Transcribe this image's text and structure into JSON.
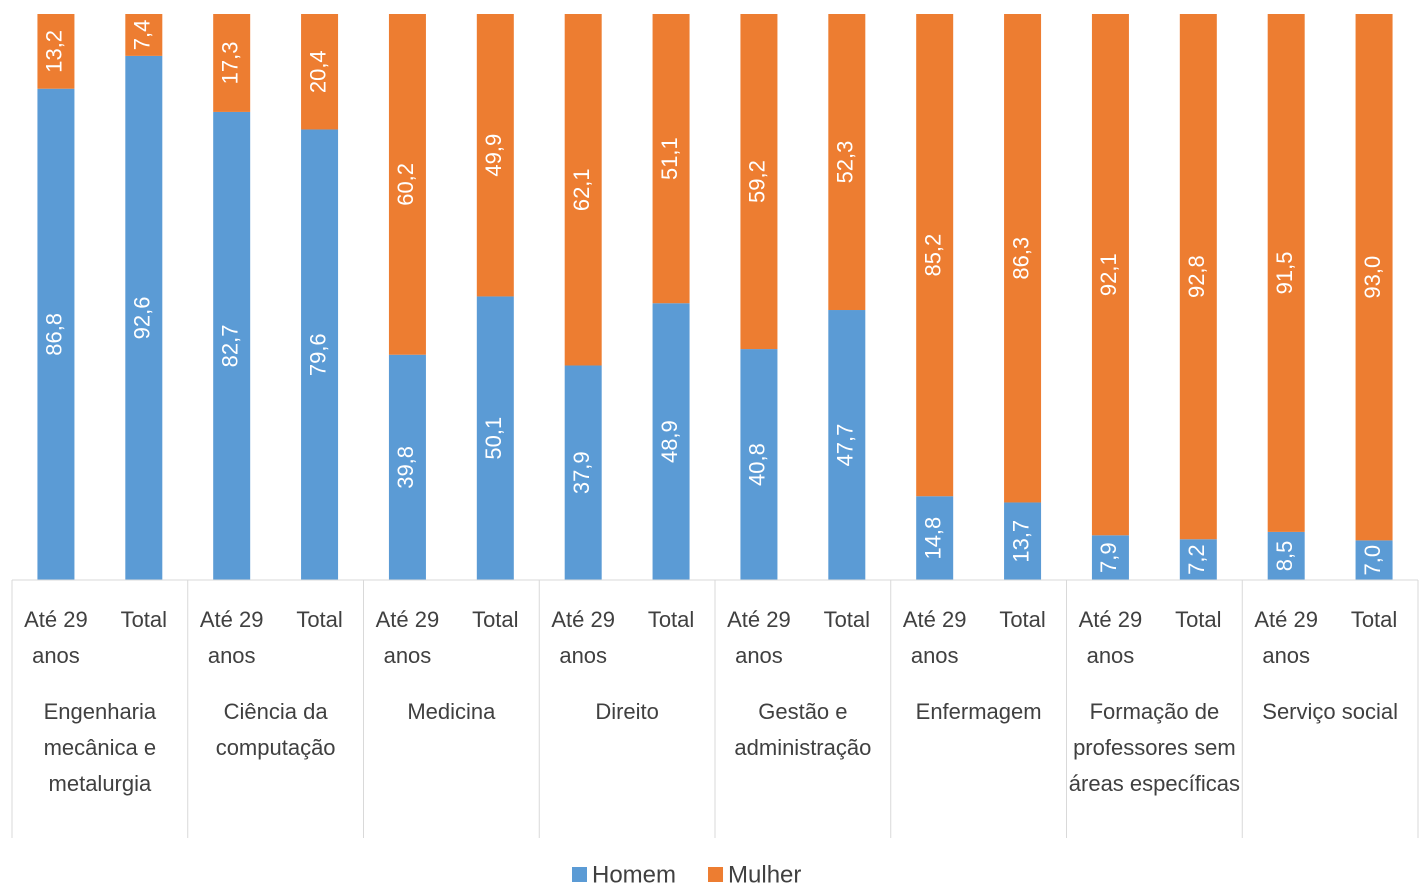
{
  "chart_data": {
    "type": "stacked_bar",
    "categories": [
      "Até 29 anos",
      "Total",
      "Até 29 anos",
      "Total",
      "Até 29 anos",
      "Total",
      "Até 29 anos",
      "Total",
      "Até 29 anos",
      "Total",
      "Até 29 anos",
      "Total",
      "Até 29 anos",
      "Total",
      "Até 29 anos",
      "Total"
    ],
    "groups": [
      "Engenharia mecânica e metalurgia",
      "Ciência da computação",
      "Medicina",
      "Direito",
      "Gestão e administração",
      "Enfermagem",
      "Formação de professores sem áreas específicas",
      "Serviço social"
    ],
    "series": [
      {
        "name": "Homem",
        "color": "#5b9bd5",
        "values": [
          86.8,
          92.6,
          82.7,
          79.6,
          39.8,
          50.1,
          37.9,
          48.9,
          40.8,
          47.7,
          14.8,
          13.7,
          7.9,
          7.2,
          8.5,
          7.0
        ],
        "value_labels": [
          "86,8",
          "92,6",
          "82,7",
          "79,6",
          "39,8",
          "50,1",
          "37,9",
          "48,9",
          "40,8",
          "47,7",
          "14,8",
          "13,7",
          "7,9",
          "7,2",
          "8,5",
          "7,0"
        ]
      },
      {
        "name": "Mulher",
        "color": "#ed7d31",
        "values": [
          13.2,
          7.4,
          17.3,
          20.4,
          60.2,
          49.9,
          62.1,
          51.1,
          59.2,
          52.3,
          85.2,
          86.3,
          92.1,
          92.8,
          91.5,
          93.0
        ],
        "value_labels": [
          "13,2",
          "7,4",
          "17,3",
          "20,4",
          "60,2",
          "49,9",
          "62,1",
          "51,1",
          "59,2",
          "52,3",
          "85,2",
          "86,3",
          "92,1",
          "92,8",
          "91,5",
          "93,0"
        ]
      }
    ],
    "ylim": [
      0,
      100
    ],
    "legend": "bottom"
  }
}
